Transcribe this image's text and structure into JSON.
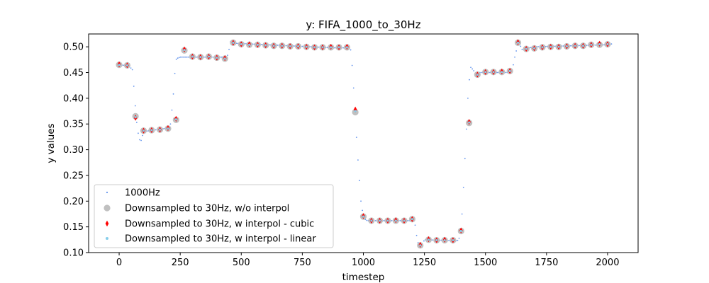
{
  "chart_data": {
    "type": "scatter",
    "title": "y: FIFA_1000_to_30Hz",
    "xlabel": "timestep",
    "ylabel": "y values",
    "xlim": [
      -125,
      2125
    ],
    "ylim": [
      0.1,
      0.525
    ],
    "xticks": [
      0,
      250,
      500,
      750,
      1000,
      1250,
      1500,
      1750,
      2000
    ],
    "yticks": [
      0.1,
      0.15,
      0.2,
      0.25,
      0.3,
      0.35,
      0.4,
      0.45,
      0.5
    ],
    "xtick_labels": [
      "0",
      "250",
      "500",
      "750",
      "1000",
      "1250",
      "1500",
      "1750",
      "2000"
    ],
    "ytick_labels": [
      "0.10",
      "0.15",
      "0.20",
      "0.25",
      "0.30",
      "0.35",
      "0.40",
      "0.45",
      "0.50"
    ],
    "grid": false,
    "legend_position": "lower-left",
    "source_profile": {
      "t": [
        0,
        40,
        55,
        70,
        80,
        85,
        90,
        100,
        110,
        200,
        210,
        220,
        232,
        240,
        250,
        430,
        440,
        450,
        455,
        470,
        880,
        940,
        950,
        960,
        975,
        990,
        1000,
        1010,
        1020,
        1200,
        1210,
        1222,
        1240,
        1250,
        1385,
        1395,
        1405,
        1420,
        1430,
        1440,
        1450,
        1460,
        1470,
        1600,
        1610,
        1620,
        1635,
        1650,
        1700,
        2000,
        2020
      ],
      "y": [
        0.465,
        0.463,
        0.455,
        0.36,
        0.325,
        0.318,
        0.318,
        0.334,
        0.336,
        0.342,
        0.35,
        0.395,
        0.475,
        0.478,
        0.48,
        0.48,
        0.476,
        0.495,
        0.51,
        0.507,
        0.498,
        0.498,
        0.493,
        0.42,
        0.3,
        0.2,
        0.17,
        0.163,
        0.162,
        0.162,
        0.16,
        0.12,
        0.113,
        0.125,
        0.123,
        0.13,
        0.18,
        0.32,
        0.42,
        0.46,
        0.455,
        0.447,
        0.45,
        0.45,
        0.455,
        0.48,
        0.51,
        0.495,
        0.5,
        0.504,
        0.506
      ]
    },
    "series": [
      {
        "name": "1000Hz",
        "color": "#6495ed",
        "marker": "dot",
        "step": 6
      },
      {
        "name": "Downsampled to 30Hz, w/o interpol",
        "color": "#c0c0c0",
        "marker": "circle",
        "x": [
          0,
          33,
          67,
          100,
          133,
          167,
          200,
          233,
          267,
          300,
          333,
          367,
          400,
          433,
          467,
          500,
          533,
          567,
          600,
          633,
          667,
          700,
          733,
          767,
          800,
          833,
          867,
          900,
          933,
          967,
          1000,
          1033,
          1067,
          1100,
          1133,
          1167,
          1200,
          1233,
          1267,
          1300,
          1333,
          1367,
          1400,
          1433,
          1467,
          1500,
          1533,
          1567,
          1600,
          1633,
          1667,
          1700,
          1733,
          1767,
          1800,
          1833,
          1867,
          1900,
          1933,
          1967,
          2000
        ],
        "y": [
          0.465,
          0.464,
          0.365,
          0.337,
          0.338,
          0.339,
          0.341,
          0.358,
          0.493,
          0.481,
          0.48,
          0.481,
          0.479,
          0.477,
          0.508,
          0.505,
          0.504,
          0.504,
          0.503,
          0.502,
          0.502,
          0.501,
          0.501,
          0.5,
          0.499,
          0.499,
          0.499,
          0.499,
          0.499,
          0.373,
          0.17,
          0.162,
          0.162,
          0.162,
          0.162,
          0.162,
          0.165,
          0.114,
          0.125,
          0.124,
          0.124,
          0.124,
          0.142,
          0.352,
          0.446,
          0.451,
          0.451,
          0.451,
          0.453,
          0.508,
          0.496,
          0.497,
          0.499,
          0.5,
          0.5,
          0.501,
          0.502,
          0.502,
          0.504,
          0.504,
          0.505
        ]
      },
      {
        "name": "Downsampled to 30Hz, w interpol - cubic",
        "color": "#ff0000",
        "marker": "diamond",
        "x": [
          0,
          33,
          67,
          100,
          133,
          167,
          200,
          233,
          267,
          300,
          333,
          367,
          400,
          433,
          467,
          500,
          533,
          567,
          600,
          633,
          667,
          700,
          733,
          767,
          800,
          833,
          867,
          900,
          933,
          967,
          1000,
          1033,
          1067,
          1100,
          1133,
          1167,
          1200,
          1233,
          1267,
          1300,
          1333,
          1367,
          1400,
          1433,
          1467,
          1500,
          1533,
          1567,
          1600,
          1633,
          1667,
          1700,
          1733,
          1767,
          1800,
          1833,
          1867,
          1900,
          1933,
          1967,
          2000
        ],
        "y": [
          0.466,
          0.464,
          0.362,
          0.337,
          0.338,
          0.339,
          0.342,
          0.36,
          0.495,
          0.481,
          0.48,
          0.481,
          0.479,
          0.478,
          0.508,
          0.505,
          0.505,
          0.504,
          0.503,
          0.502,
          0.502,
          0.501,
          0.501,
          0.5,
          0.499,
          0.499,
          0.5,
          0.499,
          0.5,
          0.378,
          0.171,
          0.162,
          0.162,
          0.162,
          0.163,
          0.162,
          0.165,
          0.115,
          0.126,
          0.124,
          0.125,
          0.124,
          0.143,
          0.354,
          0.446,
          0.451,
          0.451,
          0.452,
          0.453,
          0.509,
          0.496,
          0.497,
          0.499,
          0.5,
          0.5,
          0.501,
          0.502,
          0.502,
          0.504,
          0.506,
          0.505
        ]
      },
      {
        "name": "Downsampled to 30Hz, w interpol - linear",
        "color": "#87ceeb",
        "marker": "small-dot",
        "x": [
          0,
          33,
          67,
          100,
          133,
          167,
          200,
          233,
          267,
          300,
          333,
          367,
          400,
          433,
          467,
          500,
          533,
          567,
          600,
          633,
          667,
          700,
          733,
          767,
          800,
          833,
          867,
          900,
          933,
          967,
          1000,
          1033,
          1067,
          1100,
          1133,
          1167,
          1200,
          1233,
          1267,
          1300,
          1333,
          1367,
          1400,
          1433,
          1467,
          1500,
          1533,
          1567,
          1600,
          1633,
          1667,
          1700,
          1733,
          1767,
          1800,
          1833,
          1867,
          1900,
          1933,
          1967,
          2000
        ],
        "y": [
          0.465,
          0.464,
          0.363,
          0.337,
          0.338,
          0.339,
          0.341,
          0.359,
          0.494,
          0.481,
          0.48,
          0.481,
          0.479,
          0.477,
          0.508,
          0.505,
          0.504,
          0.504,
          0.503,
          0.502,
          0.502,
          0.501,
          0.501,
          0.5,
          0.499,
          0.499,
          0.499,
          0.499,
          0.499,
          0.375,
          0.17,
          0.162,
          0.162,
          0.162,
          0.162,
          0.162,
          0.165,
          0.114,
          0.125,
          0.124,
          0.124,
          0.124,
          0.142,
          0.353,
          0.446,
          0.451,
          0.451,
          0.451,
          0.453,
          0.508,
          0.496,
          0.497,
          0.499,
          0.5,
          0.5,
          0.501,
          0.502,
          0.502,
          0.504,
          0.505,
          0.505
        ]
      }
    ]
  }
}
